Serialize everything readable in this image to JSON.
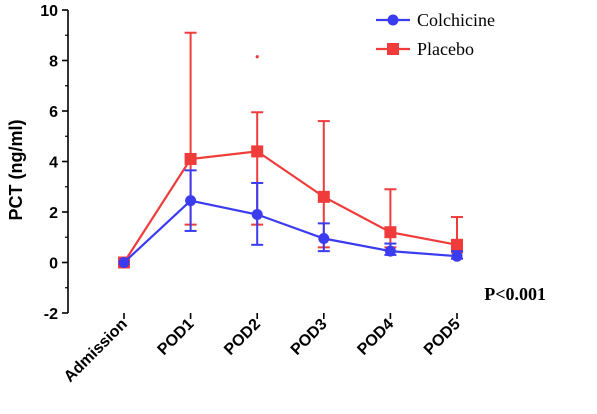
{
  "chart_data": {
    "type": "line",
    "title": "",
    "xlabel": "",
    "ylabel": "PCT (ng/ml)",
    "ylim": [
      -2,
      10
    ],
    "yticks": [
      -2,
      0,
      2,
      4,
      6,
      8,
      10
    ],
    "categories": [
      "Admission",
      "POD1",
      "POD2",
      "POD3",
      "POD4",
      "POD5"
    ],
    "legend_position": "top-right",
    "annotation": "P<0.001",
    "series": [
      {
        "name": "Colchicine",
        "color": "#3b3bf0",
        "marker": "circle",
        "values": [
          0.0,
          2.45,
          1.9,
          0.95,
          0.45,
          0.25
        ],
        "err_upper": [
          0.0,
          3.65,
          3.15,
          1.55,
          0.75,
          0.45
        ],
        "err_lower": [
          0.0,
          1.25,
          0.7,
          0.45,
          0.3,
          0.15
        ]
      },
      {
        "name": "Placebo",
        "color": "#f03b3b",
        "marker": "square",
        "values": [
          0.0,
          4.1,
          4.4,
          2.6,
          1.2,
          0.7
        ],
        "err_upper": [
          0.0,
          9.1,
          5.95,
          5.6,
          2.9,
          1.8
        ],
        "err_lower": [
          0.0,
          1.5,
          1.5,
          0.6,
          0.6,
          0.4
        ]
      }
    ],
    "outliers": [
      {
        "series": "Placebo",
        "category": "POD2",
        "value": 8.15
      }
    ]
  }
}
